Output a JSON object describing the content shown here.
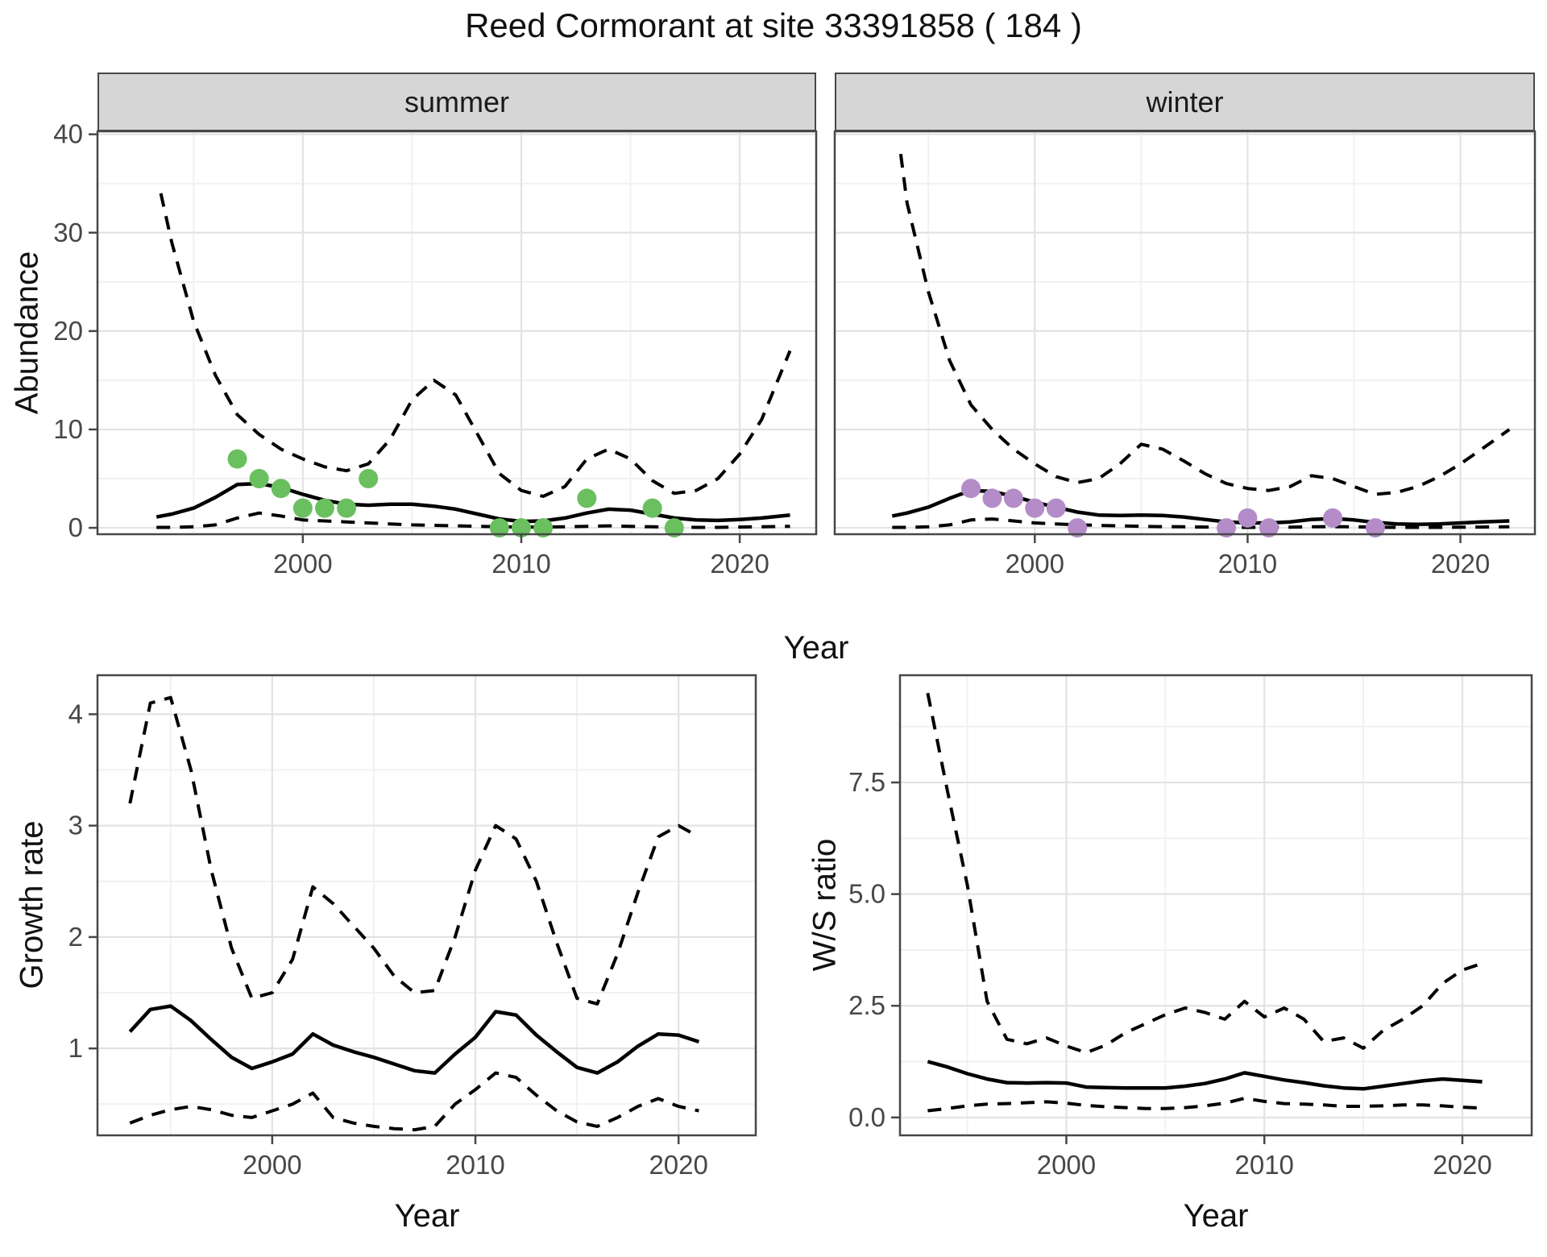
{
  "title": "Reed Cormorant at site 33391858 ( 184 )",
  "colors": {
    "summer_points": "#6abf5f",
    "winter_points": "#b48cc8",
    "line": "#000000",
    "strip_bg": "#d6d6d6",
    "grid_major": "#e3e3e3",
    "grid_minor": "#f1f1f1",
    "panel_border": "#474747",
    "tick_label": "#474747",
    "panel_bg": "#ffffff"
  },
  "chart_data": [
    {
      "name": "abundance-summer",
      "type": "line",
      "facet_label": "summer",
      "xlabel": "Year",
      "ylabel": "Abundance",
      "xlim": [
        1990.6,
        2023.5
      ],
      "ylim": [
        -0.65,
        40.3
      ],
      "x_ticks": [
        2000,
        2010,
        2020
      ],
      "x_tick_labels": [
        "2000",
        "2010",
        "2020"
      ],
      "x_minor": [
        1995,
        2005,
        2015
      ],
      "y_ticks": [
        0,
        10,
        20,
        30,
        40
      ],
      "y_tick_labels": [
        "0",
        "10",
        "20",
        "30",
        "40"
      ],
      "y_minor": [
        5,
        15,
        25,
        35
      ],
      "show_y_tick_labels": true,
      "legend": "off",
      "grid": "on",
      "series": [
        {
          "name": "fit",
          "style": "solid",
          "x": [
            1993.3,
            1994,
            1995,
            1996,
            1997,
            1998,
            1999,
            2000,
            2001,
            2002,
            2003,
            2004,
            2005,
            2006,
            2007,
            2008,
            2009,
            2010,
            2011,
            2012,
            2013,
            2014,
            2015,
            2016,
            2017,
            2018,
            2019,
            2020,
            2021,
            2022.3
          ],
          "y": [
            1.1,
            1.4,
            2.0,
            3.1,
            4.4,
            4.5,
            4.1,
            3.4,
            2.8,
            2.4,
            2.3,
            2.4,
            2.4,
            2.2,
            1.9,
            1.4,
            0.9,
            0.65,
            0.7,
            1.0,
            1.5,
            1.9,
            1.8,
            1.4,
            1.0,
            0.8,
            0.75,
            0.85,
            1.0,
            1.3
          ]
        },
        {
          "name": "upper-ci",
          "style": "dashed",
          "x": [
            1993.5,
            1994,
            1995,
            1996,
            1997,
            1998,
            1999,
            2000,
            2001,
            2002,
            2003,
            2004,
            2005,
            2006,
            2007,
            2008,
            2009,
            2010,
            2011,
            2012,
            2013,
            2014,
            2015,
            2016,
            2017,
            2018,
            2019,
            2020,
            2021,
            2022.3
          ],
          "y": [
            34,
            29,
            21,
            15.5,
            11.5,
            9.5,
            8,
            7,
            6.2,
            5.8,
            6.5,
            9,
            13,
            15,
            13.5,
            9.5,
            5.5,
            3.8,
            3.2,
            4.2,
            7,
            8,
            7,
            4.8,
            3.5,
            3.8,
            5,
            7.5,
            11,
            18
          ]
        },
        {
          "name": "lower-ci",
          "style": "dashed",
          "x": [
            1993.3,
            1994,
            1995,
            1996,
            1997,
            1998,
            1999,
            2000,
            2001,
            2002,
            2003,
            2004,
            2005,
            2006,
            2007,
            2008,
            2009,
            2010,
            2011,
            2012,
            2013,
            2014,
            2015,
            2016,
            2017,
            2018,
            2019,
            2020,
            2021,
            2022.3
          ],
          "y": [
            0.05,
            0.05,
            0.1,
            0.3,
            1.0,
            1.5,
            1.2,
            0.8,
            0.7,
            0.6,
            0.5,
            0.4,
            0.3,
            0.25,
            0.2,
            0.15,
            0.1,
            0.08,
            0.08,
            0.1,
            0.15,
            0.2,
            0.15,
            0.1,
            0.08,
            0.05,
            0.05,
            0.08,
            0.1,
            0.15
          ]
        }
      ],
      "points": {
        "name": "observed-counts-summer",
        "color": "#6abf5f",
        "x": [
          1997,
          1998,
          1999,
          2000,
          2001,
          2002,
          2003,
          2009,
          2010,
          2011,
          2013,
          2016,
          2017
        ],
        "y": [
          7,
          5,
          4,
          2,
          2,
          2,
          5,
          0,
          0,
          0,
          3,
          2,
          0
        ]
      }
    },
    {
      "name": "abundance-winter",
      "type": "line",
      "facet_label": "winter",
      "xlabel": null,
      "ylabel": null,
      "xlim": [
        1990.6,
        2023.5
      ],
      "ylim": [
        -0.65,
        40.3
      ],
      "x_ticks": [
        2000,
        2010,
        2020
      ],
      "x_tick_labels": [
        "2000",
        "2010",
        "2020"
      ],
      "x_minor": [
        1995,
        2005,
        2015
      ],
      "y_ticks": [
        0,
        10,
        20,
        30,
        40
      ],
      "y_tick_labels": [
        "0",
        "10",
        "20",
        "30",
        "40"
      ],
      "y_minor": [
        5,
        15,
        25,
        35
      ],
      "show_y_tick_labels": false,
      "legend": "off",
      "grid": "on",
      "series": [
        {
          "name": "fit",
          "style": "solid",
          "x": [
            1993.3,
            1994,
            1995,
            1996,
            1997,
            1998,
            1999,
            2000,
            2001,
            2002,
            2003,
            2004,
            2005,
            2006,
            2007,
            2008,
            2009,
            2010,
            2011,
            2012,
            2013,
            2014,
            2015,
            2016,
            2017,
            2018,
            2019,
            2020,
            2021,
            2022.3
          ],
          "y": [
            1.2,
            1.5,
            2.1,
            3.0,
            3.8,
            3.7,
            3.2,
            2.6,
            2.1,
            1.6,
            1.3,
            1.25,
            1.3,
            1.25,
            1.1,
            0.85,
            0.6,
            0.5,
            0.5,
            0.6,
            0.85,
            0.95,
            0.8,
            0.55,
            0.4,
            0.35,
            0.4,
            0.5,
            0.6,
            0.7
          ]
        },
        {
          "name": "upper-ci",
          "style": "dashed",
          "x": [
            1993.7,
            1994,
            1995,
            1996,
            1997,
            1998,
            1999,
            2000,
            2001,
            2002,
            2003,
            2004,
            2005,
            2006,
            2007,
            2008,
            2009,
            2010,
            2011,
            2012,
            2013,
            2014,
            2015,
            2016,
            2017,
            2018,
            2019,
            2020,
            2021,
            2022.3
          ],
          "y": [
            38,
            33,
            24,
            17,
            12.5,
            10,
            8,
            6.5,
            5.2,
            4.6,
            5,
            6.5,
            8.5,
            8,
            6.8,
            5.5,
            4.5,
            4,
            3.8,
            4.2,
            5.3,
            5,
            4.2,
            3.4,
            3.6,
            4.2,
            5.2,
            6.5,
            8,
            10
          ]
        },
        {
          "name": "lower-ci",
          "style": "dashed",
          "x": [
            1993.3,
            1994,
            1995,
            1996,
            1997,
            1998,
            1999,
            2000,
            2001,
            2002,
            2003,
            2004,
            2005,
            2006,
            2007,
            2008,
            2009,
            2010,
            2011,
            2012,
            2013,
            2014,
            2015,
            2016,
            2017,
            2018,
            2019,
            2020,
            2021,
            2022.3
          ],
          "y": [
            0.05,
            0.05,
            0.1,
            0.3,
            0.8,
            0.9,
            0.7,
            0.5,
            0.4,
            0.3,
            0.25,
            0.2,
            0.15,
            0.12,
            0.1,
            0.08,
            0.06,
            0.05,
            0.05,
            0.06,
            0.1,
            0.12,
            0.1,
            0.06,
            0.05,
            0.05,
            0.05,
            0.06,
            0.08,
            0.1
          ]
        }
      ],
      "points": {
        "name": "observed-counts-winter",
        "color": "#b48cc8",
        "x": [
          1997,
          1998,
          1999,
          2000,
          2001,
          2002,
          2009,
          2010,
          2011,
          2014,
          2016
        ],
        "y": [
          4,
          3,
          3,
          2,
          2,
          0,
          0,
          1,
          0,
          1,
          0
        ]
      }
    },
    {
      "name": "growth-rate",
      "type": "line",
      "facet_label": null,
      "xlabel": "Year",
      "ylabel": "Growth rate",
      "xlim": [
        1991.4,
        2023.8
      ],
      "ylim": [
        0.22,
        4.35
      ],
      "x_ticks": [
        2000,
        2010,
        2020
      ],
      "x_tick_labels": [
        "2000",
        "2010",
        "2020"
      ],
      "x_minor": [
        1995,
        2005,
        2015
      ],
      "y_ticks": [
        1,
        2,
        3,
        4
      ],
      "y_tick_labels": [
        "1",
        "2",
        "3",
        "4"
      ],
      "y_minor": [
        0.5,
        1.5,
        2.5,
        3.5
      ],
      "show_y_tick_labels": true,
      "legend": "off",
      "grid": "on",
      "series": [
        {
          "name": "fit",
          "style": "solid",
          "x": [
            1993,
            1994,
            1995,
            1996,
            1997,
            1998,
            1999,
            2000,
            2001,
            2002,
            2003,
            2004,
            2005,
            2006,
            2007,
            2008,
            2009,
            2010,
            2011,
            2012,
            2013,
            2014,
            2015,
            2016,
            2017,
            2018,
            2019,
            2020,
            2021
          ],
          "y": [
            1.15,
            1.35,
            1.38,
            1.25,
            1.08,
            0.92,
            0.82,
            0.88,
            0.95,
            1.13,
            1.03,
            0.97,
            0.92,
            0.86,
            0.8,
            0.78,
            0.95,
            1.1,
            1.33,
            1.3,
            1.12,
            0.97,
            0.83,
            0.78,
            0.88,
            1.02,
            1.13,
            1.12,
            1.06
          ]
        },
        {
          "name": "upper-ci",
          "style": "dashed",
          "x": [
            1993,
            1994,
            1995,
            1996,
            1997,
            1998,
            1999,
            2000,
            2001,
            2002,
            2003,
            2004,
            2005,
            2006,
            2007,
            2008,
            2009,
            2010,
            2011,
            2012,
            2013,
            2014,
            2015,
            2016,
            2017,
            2018,
            2019,
            2020,
            2021
          ],
          "y": [
            3.2,
            4.1,
            4.15,
            3.5,
            2.6,
            1.9,
            1.45,
            1.5,
            1.8,
            2.45,
            2.3,
            2.1,
            1.9,
            1.65,
            1.5,
            1.52,
            2.0,
            2.6,
            3.0,
            2.88,
            2.5,
            1.95,
            1.45,
            1.4,
            1.85,
            2.4,
            2.9,
            3.0,
            2.9
          ]
        },
        {
          "name": "lower-ci",
          "style": "dashed",
          "x": [
            1993,
            1994,
            1995,
            1996,
            1997,
            1998,
            1999,
            2000,
            2001,
            2002,
            2003,
            2004,
            2005,
            2006,
            2007,
            2008,
            2009,
            2010,
            2011,
            2012,
            2013,
            2014,
            2015,
            2016,
            2017,
            2018,
            2019,
            2020,
            2021
          ],
          "y": [
            0.33,
            0.4,
            0.45,
            0.48,
            0.45,
            0.4,
            0.38,
            0.44,
            0.5,
            0.6,
            0.38,
            0.33,
            0.3,
            0.28,
            0.27,
            0.3,
            0.5,
            0.63,
            0.78,
            0.74,
            0.58,
            0.44,
            0.34,
            0.3,
            0.38,
            0.48,
            0.55,
            0.48,
            0.44
          ]
        }
      ],
      "points": null
    },
    {
      "name": "ws-ratio",
      "type": "line",
      "facet_label": null,
      "xlabel": "Year",
      "ylabel": "W/S ratio",
      "xlim": [
        1991.6,
        2023.5
      ],
      "ylim": [
        -0.4,
        9.9
      ],
      "x_ticks": [
        2000,
        2010,
        2020
      ],
      "x_tick_labels": [
        "2000",
        "2010",
        "2020"
      ],
      "x_minor": [
        1995,
        2005,
        2015
      ],
      "y_ticks": [
        0,
        2.5,
        5,
        7.5
      ],
      "y_tick_labels": [
        "0.0",
        "2.5",
        "5.0",
        "7.5"
      ],
      "y_minor": [
        1.25,
        3.75,
        6.25,
        8.75
      ],
      "show_y_tick_labels": true,
      "legend": "off",
      "grid": "on",
      "series": [
        {
          "name": "fit",
          "style": "solid",
          "x": [
            1993,
            1994,
            1995,
            1996,
            1997,
            1998,
            1999,
            2000,
            2001,
            2002,
            2003,
            2004,
            2005,
            2006,
            2007,
            2008,
            2009,
            2010,
            2011,
            2012,
            2013,
            2014,
            2015,
            2016,
            2017,
            2018,
            2019,
            2020,
            2021
          ],
          "y": [
            1.25,
            1.13,
            0.98,
            0.86,
            0.78,
            0.77,
            0.78,
            0.77,
            0.68,
            0.67,
            0.66,
            0.66,
            0.66,
            0.7,
            0.76,
            0.86,
            1.0,
            0.92,
            0.84,
            0.78,
            0.71,
            0.66,
            0.64,
            0.7,
            0.76,
            0.82,
            0.86,
            0.83,
            0.8
          ]
        },
        {
          "name": "upper-ci",
          "style": "dashed",
          "x": [
            1993,
            1994,
            1995,
            1996,
            1997,
            1998,
            1999,
            2000,
            2001,
            2002,
            2003,
            2004,
            2005,
            2006,
            2007,
            2008,
            2009,
            2010,
            2011,
            2012,
            2013,
            2014,
            2015,
            2016,
            2017,
            2018,
            2019,
            2020,
            2021
          ],
          "y": [
            9.5,
            7.3,
            5.2,
            2.6,
            1.75,
            1.65,
            1.78,
            1.6,
            1.45,
            1.62,
            1.9,
            2.1,
            2.3,
            2.45,
            2.35,
            2.2,
            2.6,
            2.25,
            2.45,
            2.2,
            1.7,
            1.78,
            1.55,
            1.95,
            2.2,
            2.5,
            3.0,
            3.3,
            3.45
          ]
        },
        {
          "name": "lower-ci",
          "style": "dashed",
          "x": [
            1993,
            1994,
            1995,
            1996,
            1997,
            1998,
            1999,
            2000,
            2001,
            2002,
            2003,
            2004,
            2005,
            2006,
            2007,
            2008,
            2009,
            2010,
            2011,
            2012,
            2013,
            2014,
            2015,
            2016,
            2017,
            2018,
            2019,
            2020,
            2021
          ],
          "y": [
            0.15,
            0.2,
            0.26,
            0.3,
            0.31,
            0.33,
            0.35,
            0.32,
            0.27,
            0.24,
            0.22,
            0.2,
            0.2,
            0.22,
            0.26,
            0.32,
            0.43,
            0.36,
            0.31,
            0.3,
            0.28,
            0.25,
            0.25,
            0.26,
            0.28,
            0.28,
            0.26,
            0.23,
            0.21
          ]
        }
      ],
      "points": null
    }
  ]
}
